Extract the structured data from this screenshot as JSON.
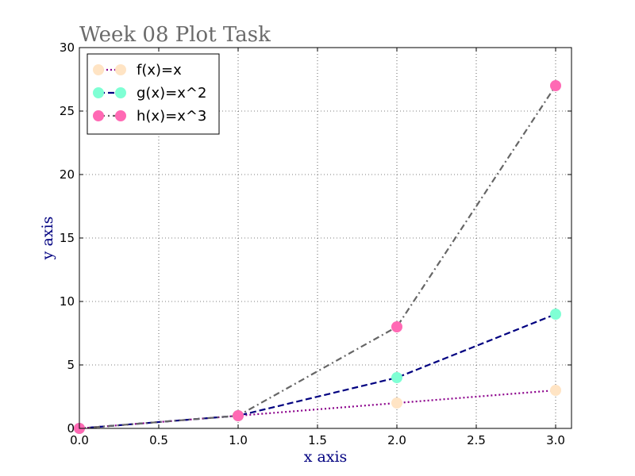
{
  "chart_data": {
    "type": "line",
    "title": "Week 08 Plot Task",
    "xlabel": "x axis",
    "ylabel": "y axis",
    "xlim": [
      0,
      3.1
    ],
    "ylim": [
      0,
      30
    ],
    "x_ticks": [
      "0.0",
      "0.5",
      "1.0",
      "1.5",
      "2.0",
      "2.5",
      "3.0"
    ],
    "y_ticks": [
      "0",
      "5",
      "10",
      "15",
      "20",
      "25",
      "30"
    ],
    "grid": true,
    "legend_position": "top-left",
    "x": [
      0,
      1,
      2,
      3
    ],
    "series": [
      {
        "name": "f(x)=x",
        "values": [
          0,
          1,
          2,
          3
        ],
        "line_color": "#8b008b",
        "line_style": "dotted",
        "marker_color": "#ffe4c4"
      },
      {
        "name": "g(x)=x^2",
        "values": [
          0,
          1,
          4,
          9
        ],
        "line_color": "#000080",
        "line_style": "dashed",
        "marker_color": "#7fffd4"
      },
      {
        "name": "h(x)=x^3",
        "values": [
          0,
          1,
          8,
          27
        ],
        "line_color": "#666666",
        "line_style": "dash-dot",
        "marker_color": "#ff69b4"
      }
    ]
  }
}
